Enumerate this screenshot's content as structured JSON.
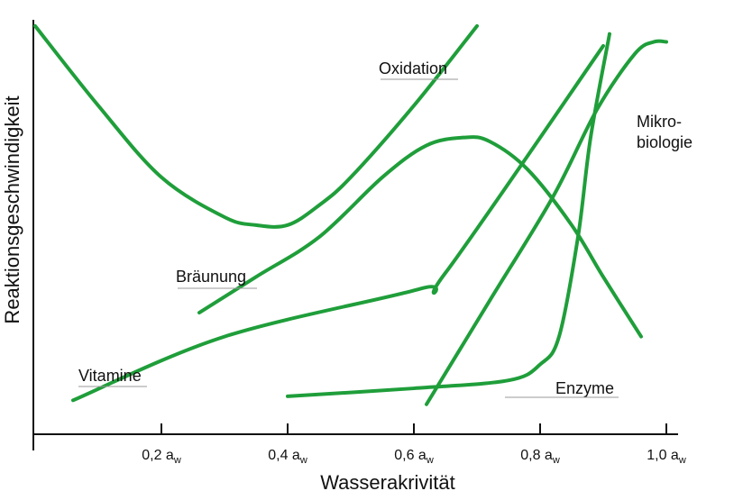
{
  "chart_data": {
    "type": "line",
    "title": "",
    "xlabel": "Wasserakrivität",
    "ylabel": "Reaktionsgeschwindigkeit",
    "xlim": [
      0,
      1.02
    ],
    "ylim": [
      0,
      1
    ],
    "x_ticks": [
      {
        "value": 0.2,
        "label": "0,2 a",
        "sub": "w"
      },
      {
        "value": 0.4,
        "label": "0,4 a",
        "sub": "w"
      },
      {
        "value": 0.6,
        "label": "0,6 a",
        "sub": "w"
      },
      {
        "value": 0.8,
        "label": "0,8 a",
        "sub": "w"
      },
      {
        "value": 1.0,
        "label": "1,0 a",
        "sub": "w"
      }
    ],
    "grid": false,
    "line_color": "#1f9e3a",
    "series": [
      {
        "name": "Oxidation",
        "label_lines": [
          "Oxidation"
        ],
        "x": [
          0.0,
          0.1,
          0.2,
          0.3,
          0.35,
          0.4,
          0.45,
          0.5,
          0.6,
          0.7
        ],
        "y": [
          0.98,
          0.78,
          0.6,
          0.5,
          0.48,
          0.48,
          0.53,
          0.6,
          0.78,
          0.98
        ]
      },
      {
        "name": "Bräunung",
        "label_lines": [
          "Bräunung"
        ],
        "x": [
          0.26,
          0.35,
          0.45,
          0.55,
          0.62,
          0.68,
          0.72,
          0.78,
          0.85,
          0.9,
          0.96
        ],
        "y": [
          0.26,
          0.35,
          0.45,
          0.6,
          0.68,
          0.7,
          0.69,
          0.62,
          0.48,
          0.35,
          0.2
        ]
      },
      {
        "name": "Vitamine",
        "label_lines": [
          "Vitamine"
        ],
        "x": [
          0.06,
          0.3,
          0.61,
          0.65,
          0.9
        ],
        "y": [
          0.04,
          0.2,
          0.32,
          0.36,
          0.93
        ]
      },
      {
        "name": "Enzyme",
        "label_lines": [
          "Enzyme"
        ],
        "x": [
          0.4,
          0.6,
          0.75,
          0.8,
          0.83,
          0.86,
          0.88,
          0.91
        ],
        "y": [
          0.05,
          0.07,
          0.09,
          0.13,
          0.2,
          0.45,
          0.7,
          0.96
        ]
      },
      {
        "name": "Mikrobiologie",
        "label_lines": [
          "Mikro-",
          "biologie"
        ],
        "x": [
          0.62,
          0.72,
          0.82,
          0.89,
          0.95,
          0.98,
          1.0
        ],
        "y": [
          0.03,
          0.29,
          0.55,
          0.77,
          0.91,
          0.94,
          0.94
        ]
      }
    ]
  }
}
